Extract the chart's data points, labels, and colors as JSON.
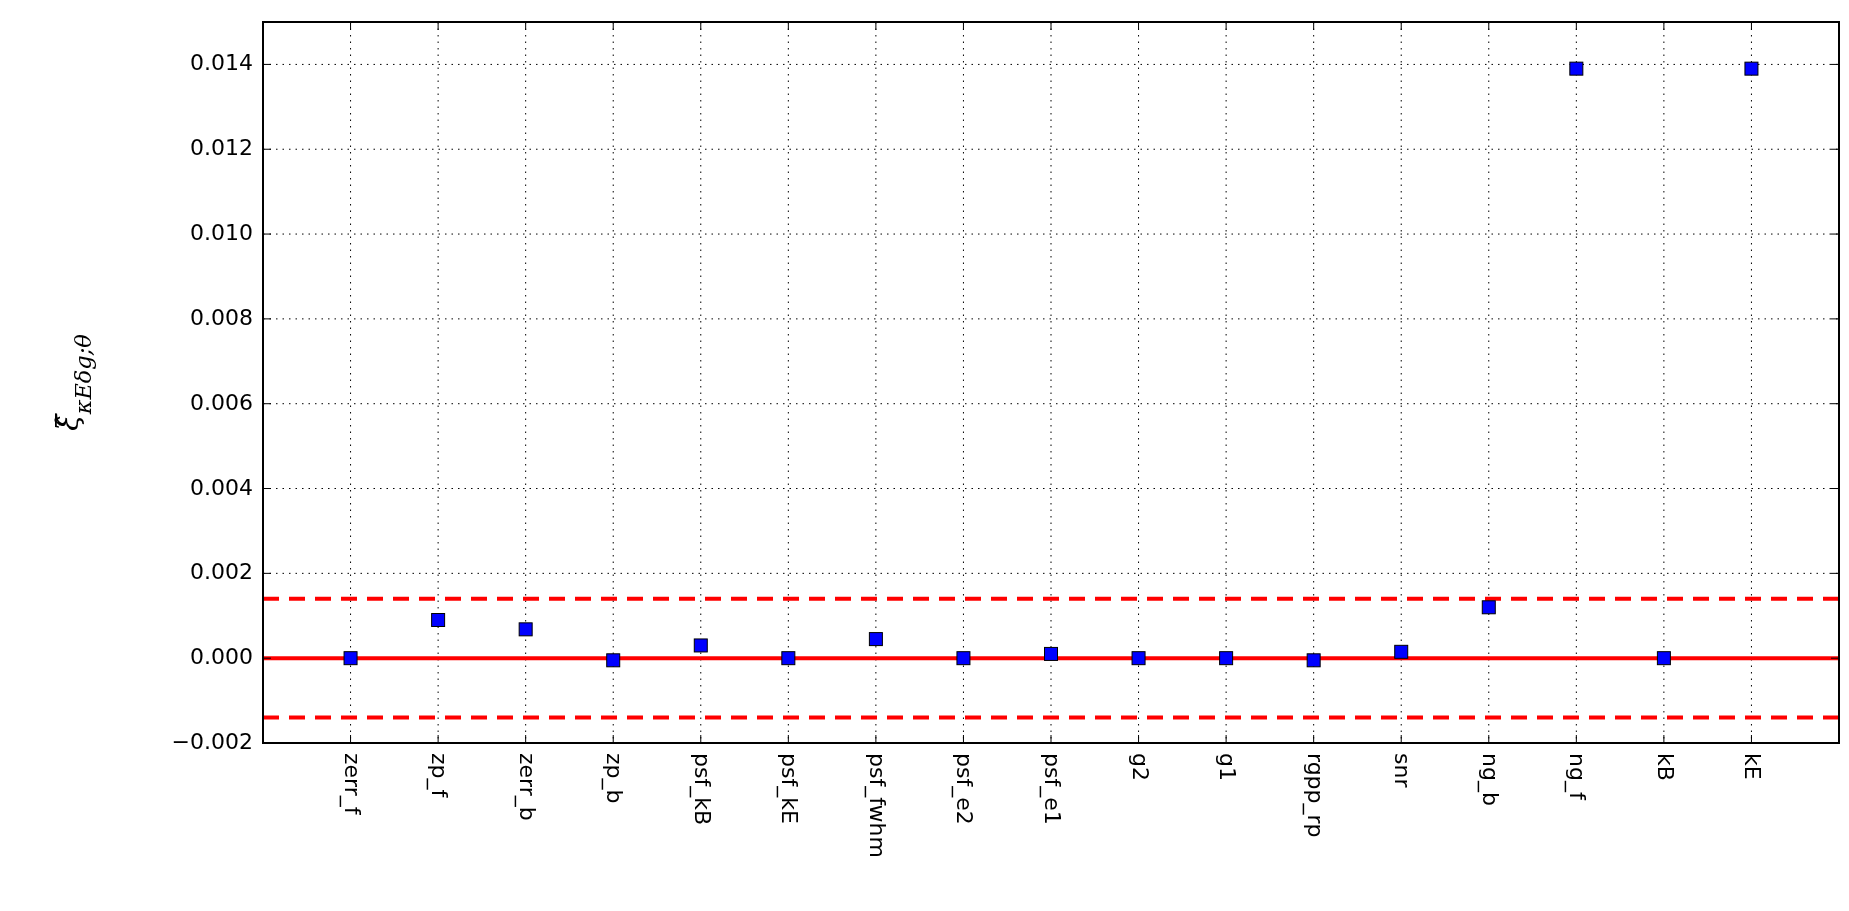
{
  "chart_data": {
    "type": "scatter",
    "ylabel": "ξ̂$_{κEδg;θ}$",
    "categories": [
      "zerr_f",
      "zp_f",
      "zerr_b",
      "zp_b",
      "psf_kB",
      "psf_kE",
      "psf_fwhm",
      "psf_e2",
      "psf_e1",
      "g2",
      "g1",
      "rgpp_rp",
      "snr",
      "ng_b",
      "ng_f",
      "kB",
      "kE"
    ],
    "series": [
      {
        "color": "#0000ff",
        "values": [
          0,
          0.0009,
          0.00068,
          -5e-05,
          0.0003,
          0,
          0.00045,
          0,
          0.0001,
          0,
          0,
          -5e-05,
          0.00015,
          0.0012,
          0.0139,
          0,
          0.0139
        ]
      }
    ],
    "ylim": [
      -0.002,
      0.015
    ],
    "yticks": [
      {
        "value": -0.002,
        "label": "−0.002"
      },
      {
        "value": 0,
        "label": "0.000"
      },
      {
        "value": 0.002,
        "label": "0.002"
      },
      {
        "value": 0.004,
        "label": "0.004"
      },
      {
        "value": 0.006,
        "label": "0.006"
      },
      {
        "value": 0.008,
        "label": "0.008"
      },
      {
        "value": 0.01,
        "label": "0.010"
      },
      {
        "value": 0.012,
        "label": "0.012"
      },
      {
        "value": 0.014,
        "label": "0.014"
      }
    ],
    "grid": true,
    "marker": "square",
    "ref_lines": [
      {
        "axis": "y",
        "value": 0,
        "color": "#ff0000",
        "line_style": "solid"
      },
      {
        "axis": "y",
        "value": 0.0014,
        "color": "#ff0000",
        "line_style": "dashed"
      },
      {
        "axis": "y",
        "value": -0.0014,
        "color": "#ff0000",
        "line_style": "dashed"
      }
    ]
  }
}
